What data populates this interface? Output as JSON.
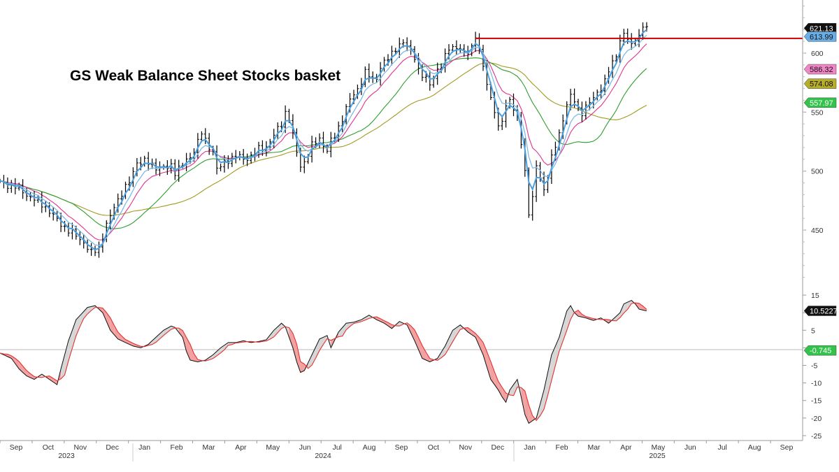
{
  "chart_data": [
    {
      "type": "line",
      "chart_kind": "price (OHLC bars) with moving averages",
      "title": "GS Weak Balance Sheet Stocks basket",
      "xlabel": "",
      "ylabel": "",
      "ylim": [
        405,
        645
      ],
      "yticks": [
        450,
        500,
        550,
        600
      ],
      "x_months": [
        "Sep",
        "Oct",
        "Nov",
        "Dec",
        "Jan",
        "Feb",
        "Mar",
        "Apr",
        "May",
        "Jun",
        "Jul",
        "Aug",
        "Sep",
        "Oct",
        "Nov",
        "Dec",
        "Jan",
        "Feb",
        "Mar",
        "Apr",
        "May",
        "Jun",
        "Jul",
        "Aug",
        "Sep"
      ],
      "x_years": [
        "2023",
        "2024",
        "2025"
      ],
      "resistance_line": {
        "value": 612.5,
        "color": "#cc0000"
      },
      "series": [
        {
          "name": "price",
          "color": "#000000",
          "values": [
            [
              0,
              490
            ],
            [
              4,
              487
            ],
            [
              8,
              478
            ],
            [
              12,
              470
            ],
            [
              15,
              458
            ],
            [
              18,
              450
            ],
            [
              22,
              440
            ],
            [
              24,
              430
            ],
            [
              26,
              435
            ],
            [
              27,
              445
            ],
            [
              28,
              455
            ],
            [
              29,
              460
            ],
            [
              30,
              470
            ],
            [
              32,
              482
            ],
            [
              34,
              490
            ],
            [
              36,
              508
            ],
            [
              38,
              508
            ],
            [
              40,
              505
            ],
            [
              42,
              503
            ],
            [
              44,
              502
            ],
            [
              45,
              505
            ],
            [
              46,
              500
            ],
            [
              48,
              505
            ],
            [
              50,
              512
            ],
            [
              52,
              525
            ],
            [
              53,
              532
            ],
            [
              54,
              525
            ],
            [
              56,
              517
            ],
            [
              57,
              502
            ],
            [
              58,
              503
            ],
            [
              60,
              510
            ],
            [
              62,
              513
            ],
            [
              64,
              510
            ],
            [
              66,
              513
            ],
            [
              68,
              518
            ],
            [
              70,
              521
            ],
            [
              72,
              530
            ],
            [
              74,
              540
            ],
            [
              75,
              550
            ],
            [
              76,
              545
            ],
            [
              77,
              530
            ],
            [
              78,
              515
            ],
            [
              79,
              505
            ],
            [
              80,
              508
            ],
            [
              82,
              521
            ],
            [
              84,
              528
            ],
            [
              86,
              517
            ],
            [
              87,
              525
            ],
            [
              88,
              530
            ],
            [
              90,
              545
            ],
            [
              92,
              560
            ],
            [
              94,
              570
            ],
            [
              96,
              583
            ],
            [
              98,
              578
            ],
            [
              99,
              580
            ],
            [
              100,
              588
            ],
            [
              102,
              595
            ],
            [
              104,
              605
            ],
            [
              106,
              608
            ],
            [
              108,
              603
            ],
            [
              109,
              598
            ],
            [
              110,
              585
            ],
            [
              111,
              580
            ],
            [
              112,
              578
            ],
            [
              113,
              575
            ],
            [
              114,
              580
            ],
            [
              115,
              585
            ],
            [
              116,
              588
            ],
            [
              118,
              606
            ],
            [
              120,
              604
            ],
            [
              122,
              600
            ],
            [
              124,
              605
            ],
            [
              125,
              614
            ],
            [
              126,
              600
            ],
            [
              127,
              590
            ],
            [
              128,
              575
            ],
            [
              129,
              562
            ],
            [
              130,
              550
            ],
            [
              131,
              535
            ],
            [
              132,
              545
            ],
            [
              133,
              555
            ],
            [
              134,
              562
            ],
            [
              135,
              550
            ],
            [
              136,
              545
            ],
            [
              137,
              525
            ],
            [
              138,
              500
            ],
            [
              139,
              465
            ],
            [
              140,
              475
            ],
            [
              141,
              505
            ],
            [
              142,
              495
            ],
            [
              143,
              485
            ],
            [
              144,
              495
            ],
            [
              145,
              510
            ],
            [
              146,
              522
            ],
            [
              147,
              532
            ],
            [
              148,
              545
            ],
            [
              149,
              555
            ],
            [
              150,
              563
            ],
            [
              151,
              560
            ],
            [
              152,
              553
            ],
            [
              153,
              550
            ],
            [
              154,
              553
            ],
            [
              155,
              558
            ],
            [
              156,
              562
            ],
            [
              157,
              568
            ],
            [
              158,
              570
            ],
            [
              159,
              575
            ],
            [
              160,
              585
            ],
            [
              161,
              592
            ],
            [
              162,
              600
            ],
            [
              163,
              610
            ],
            [
              164,
              615
            ],
            [
              165,
              612
            ],
            [
              166,
              607
            ],
            [
              167,
              614
            ],
            [
              168,
              613
            ],
            [
              169,
              622
            ],
            [
              170,
              621
            ]
          ]
        },
        {
          "name": "fast average 1",
          "color": "#4a9fe0",
          "value_label": 621.13
        },
        {
          "name": "fast average 2",
          "color": "#7fb9e6",
          "value_label": 613.99
        },
        {
          "name": "moving average (magenta)",
          "color": "#e0338c",
          "value_label": 586.32
        },
        {
          "name": "moving average (green)",
          "color": "#2e9e2e",
          "value_label": 557.97
        },
        {
          "name": "moving average (olive)",
          "color": "#a39a22",
          "value_label": 574.08
        }
      ]
    },
    {
      "type": "line",
      "chart_kind": "oscillator with signal line",
      "ylim": [
        -26,
        17
      ],
      "yticks": [
        15,
        10,
        5,
        0,
        -5,
        -10,
        -15,
        -20,
        -25
      ],
      "zero_line": 0,
      "series": [
        {
          "name": "oscillator",
          "color": "#000000",
          "value_label": "10.5227",
          "values": [
            [
              0,
              -1.5
            ],
            [
              3,
              -3
            ],
            [
              5,
              -6
            ],
            [
              7,
              -8
            ],
            [
              9,
              -9
            ],
            [
              11,
              -7.5
            ],
            [
              13,
              -9
            ],
            [
              15,
              -10.5
            ],
            [
              16,
              -6
            ],
            [
              18,
              2
            ],
            [
              20,
              8
            ],
            [
              23,
              11.5
            ],
            [
              25,
              12
            ],
            [
              27,
              10
            ],
            [
              29,
              5
            ],
            [
              31,
              2.5
            ],
            [
              33,
              1.5
            ],
            [
              35,
              0.5
            ],
            [
              37,
              0
            ],
            [
              39,
              1
            ],
            [
              41,
              3
            ],
            [
              43,
              5
            ],
            [
              45,
              6.2
            ],
            [
              46,
              5.8
            ],
            [
              48,
              3
            ],
            [
              49,
              -1
            ],
            [
              50,
              -3.5
            ],
            [
              52,
              -4
            ],
            [
              54,
              -3.5
            ],
            [
              56,
              -2
            ],
            [
              58,
              0
            ],
            [
              60,
              1.5
            ],
            [
              62,
              1.5
            ],
            [
              64,
              2
            ],
            [
              66,
              1.5
            ],
            [
              68,
              1.8
            ],
            [
              70,
              2.3
            ],
            [
              72,
              5
            ],
            [
              74,
              7
            ],
            [
              75,
              6
            ],
            [
              77,
              0
            ],
            [
              78,
              -4
            ],
            [
              79,
              -7
            ],
            [
              80,
              -6.5
            ],
            [
              82,
              -2
            ],
            [
              84,
              2.5
            ],
            [
              86,
              3.5
            ],
            [
              87,
              0
            ],
            [
              89,
              4.5
            ],
            [
              91,
              7
            ],
            [
              93,
              7.3
            ],
            [
              95,
              8
            ],
            [
              97,
              9.3
            ],
            [
              99,
              8
            ],
            [
              101,
              7
            ],
            [
              103,
              5.5
            ],
            [
              105,
              7.5
            ],
            [
              107,
              6.5
            ],
            [
              109,
              2
            ],
            [
              111,
              -3
            ],
            [
              113,
              -4
            ],
            [
              115,
              -3
            ],
            [
              117,
              0.5
            ],
            [
              119,
              5
            ],
            [
              121,
              6.5
            ],
            [
              123,
              4.5
            ],
            [
              125,
              3
            ],
            [
              127,
              -2
            ],
            [
              129,
              -9
            ],
            [
              131,
              -12
            ],
            [
              132,
              -14
            ],
            [
              133,
              -15.5
            ],
            [
              134,
              -12
            ],
            [
              136,
              -9
            ],
            [
              138,
              -19
            ],
            [
              139,
              -21.5
            ],
            [
              141,
              -20
            ],
            [
              143,
              -12
            ],
            [
              145,
              -2
            ],
            [
              147,
              3
            ],
            [
              149,
              10.5
            ],
            [
              150,
              12
            ],
            [
              151,
              10
            ],
            [
              152,
              9
            ],
            [
              154,
              8.5
            ],
            [
              156,
              7.8
            ],
            [
              158,
              8.5
            ],
            [
              160,
              7
            ],
            [
              161,
              8
            ],
            [
              163,
              10
            ],
            [
              164,
              12.5
            ],
            [
              166,
              13.5
            ],
            [
              167,
              12.5
            ],
            [
              168,
              11
            ],
            [
              170,
              10.5
            ]
          ]
        },
        {
          "name": "signal",
          "color": "#e53030",
          "value_label": "-0.745"
        }
      ]
    }
  ],
  "legend_tags": [
    {
      "text": "621.13",
      "bg": "#111111",
      "fg": "#ffffff"
    },
    {
      "text": "613.99",
      "bg": "#6aaee8",
      "fg": "#111111"
    },
    {
      "text": "586.32",
      "bg": "#f086c6",
      "fg": "#111111"
    },
    {
      "text": "574.08",
      "bg": "#b7ad2a",
      "fg": "#111111"
    },
    {
      "text": "557.97",
      "bg": "#33c24a",
      "fg": "#ffffff"
    },
    {
      "text": "10.5227",
      "bg": "#111111",
      "fg": "#ffffff"
    },
    {
      "text": "-0.745",
      "bg": "#33c24a",
      "fg": "#ffffff"
    }
  ]
}
